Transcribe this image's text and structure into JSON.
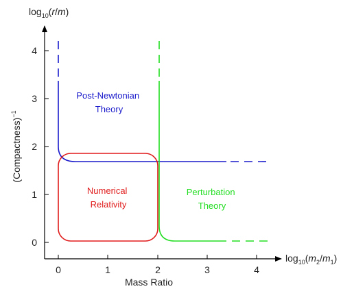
{
  "chart_data": {
    "type": "diagram",
    "x_axis": {
      "log_prefix": "log",
      "log_base": "10",
      "lparen": "(",
      "num_var": "m",
      "num_sub": "2",
      "slash": "/",
      "den_var": "m",
      "den_sub": "1",
      "rparen": ")",
      "title": "Mass Ratio",
      "ticks": [
        "0",
        "1",
        "2",
        "3",
        "4"
      ],
      "range": [
        -0.3,
        4.5
      ]
    },
    "y_axis": {
      "log_prefix": "log",
      "log_base": "10",
      "lparen": "(",
      "var": "r",
      "slash": "/",
      "den_var": "m",
      "rparen": ")",
      "title": "(Compactness)",
      "title_exp": "−1",
      "ticks": [
        "0",
        "1",
        "2",
        "3",
        "4"
      ],
      "range": [
        -0.3,
        4.6
      ]
    },
    "regions": [
      {
        "lines": [
          "Post-Newtonian",
          "Theory"
        ],
        "color": "#1a1acc"
      },
      {
        "lines": [
          "Numerical",
          "Relativity"
        ],
        "color": "#e01b1b"
      },
      {
        "lines": [
          "Perturbation",
          "Theory"
        ],
        "color": "#22dd22"
      }
    ],
    "colors": {
      "axis": "#000000",
      "pn": "#1a1acc",
      "nr": "#e01b1b",
      "pt": "#22dd22"
    }
  }
}
